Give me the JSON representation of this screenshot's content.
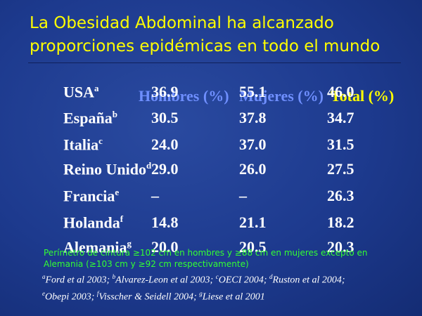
{
  "title": [
    "La Obesidad Abdominal  ha alcanzado",
    "proporciones epidémicas en todo el mundo"
  ],
  "table": {
    "header": [
      "Hombres (%)",
      "Mujeres (%)",
      "Total (%)"
    ],
    "rows": [
      {
        "country": "USA",
        "sup": "a",
        "values": [
          "36.9",
          "55.1",
          "46.0"
        ]
      },
      {
        "country": "España",
        "sup": "b",
        "values": [
          "30.5",
          "37.8",
          "34.7"
        ]
      },
      {
        "country": "Italia",
        "sup": "c",
        "values": [
          "24.0",
          "37.0",
          "31.5"
        ]
      },
      {
        "country": "Reino Unido",
        "sup": "d",
        "values": [
          "29.0",
          "26.0",
          "27.5"
        ]
      },
      {
        "country": "Francia",
        "sup": "e",
        "values": [
          "–",
          "–",
          "26.3"
        ]
      },
      {
        "country": "Holanda",
        "sup": "f",
        "values": [
          "14.8",
          "21.1",
          "18.2"
        ]
      },
      {
        "country": "Alemania",
        "sup": "g",
        "values": [
          "20.0",
          "20.5",
          "20.3"
        ]
      }
    ]
  },
  "note": "Perímetro de cintura ≥102 cm en hombres y ≥88 cm en mujeres excepto en Alemania (≥103 cm y  ≥92 cm respectivamente)",
  "references": [
    {
      "sup": "a",
      "text": "Ford et al 2003; "
    },
    {
      "sup": "b",
      "text": "Alvarez-Leon et al 2003; "
    },
    {
      "sup": "c",
      "text": "OECI 2004; "
    },
    {
      "sup": "d",
      "text": "Ruston et al 2004; "
    },
    {
      "sup": "e",
      "text": "Obepi 2003; "
    },
    {
      "sup": "f",
      "text": "Visscher  & Seidell 2004; "
    },
    {
      "sup": "g",
      "text": "Liese et al 2001"
    }
  ]
}
